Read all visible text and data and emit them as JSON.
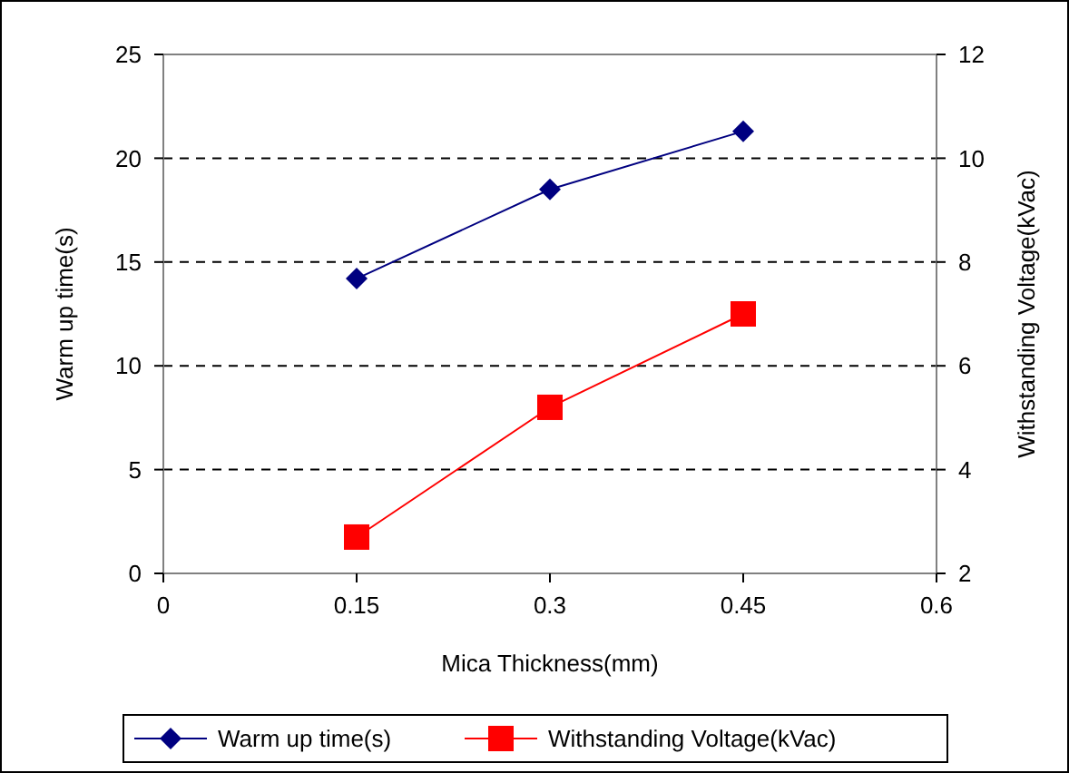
{
  "chart_data": {
    "type": "line",
    "xlabel": "Mica Thickness(mm)",
    "ylabel": "Warm up time(s)",
    "y2label": "Withstanding Voltage(kVac)",
    "x": [
      0.15,
      0.3,
      0.45
    ],
    "series": [
      {
        "name": "Warm up time(s)",
        "color": "#000080",
        "values": [
          14.2,
          18.5,
          21.3
        ],
        "marker": "diamond"
      },
      {
        "name": "Withstanding Voltage(kVac)",
        "color": "#ff0000",
        "values": [
          2.7,
          5.2,
          7.0
        ],
        "axis": "y2",
        "marker": "square"
      }
    ],
    "xlim": [
      0,
      0.6
    ],
    "xticks": [
      0,
      0.15,
      0.3,
      0.45,
      0.6
    ],
    "ylim": [
      0,
      25
    ],
    "yticks": [
      0,
      5,
      10,
      15,
      20,
      25
    ],
    "y2lim": [
      2,
      12
    ],
    "y2ticks": [
      2,
      4,
      6,
      8,
      10,
      12
    ],
    "grid": "y",
    "line_style": "solid",
    "legend": "bottom"
  }
}
